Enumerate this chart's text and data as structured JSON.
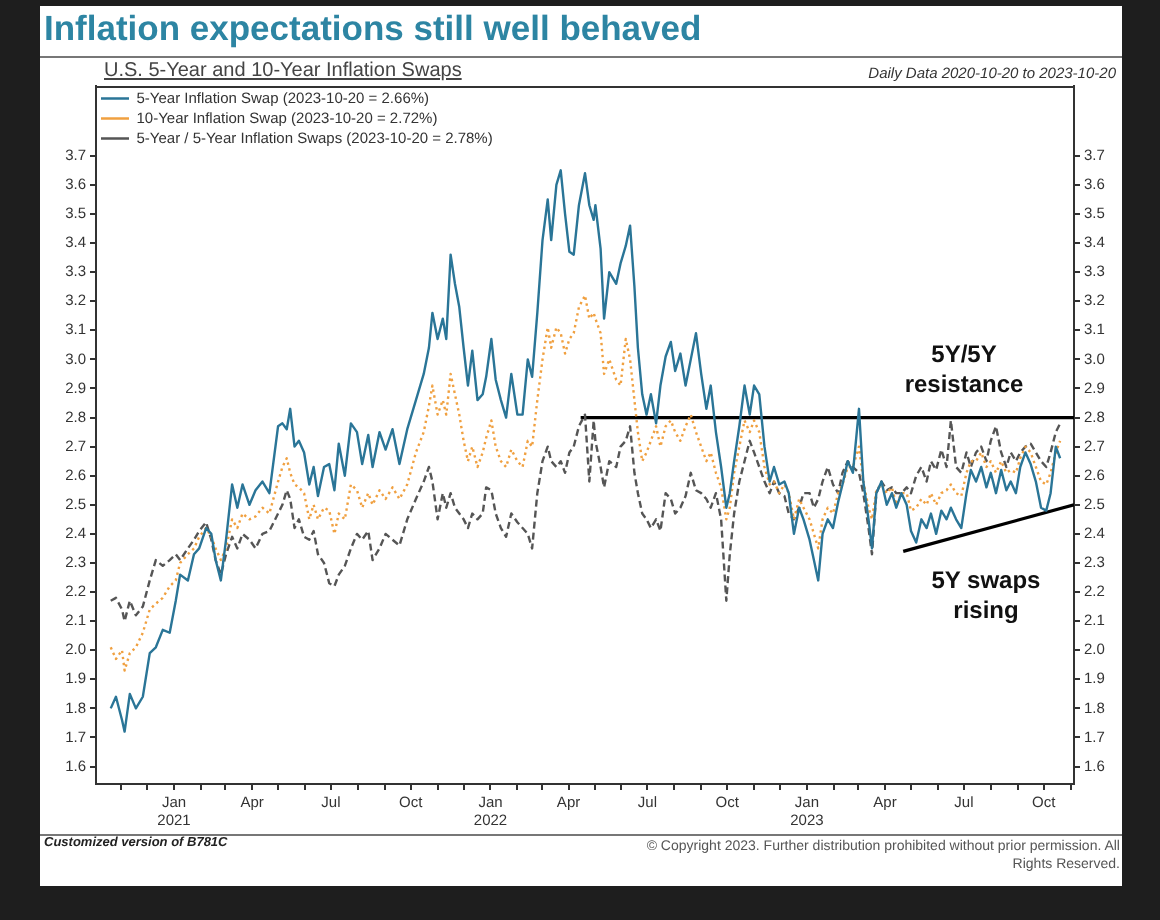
{
  "chart_data": {
    "type": "line",
    "title": "Inflation expectations still well behaved",
    "subtitle": "U.S. 5-Year and 10-Year Inflation Swaps",
    "annotations": [
      "Daily Data 2020-10-20 to 2023-10-20",
      "5Y/5Y resistance",
      "5Y swaps rising",
      "Customized version of B781C",
      "© Copyright 2023. Further distribution prohibited without prior permission. All Rights Reserved."
    ],
    "x": [
      "2020-10-20",
      "2020-10-26",
      "2020-11-02",
      "2020-11-05",
      "2020-11-11",
      "2020-11-18",
      "2020-11-26",
      "2020-12-04",
      "2020-12-11",
      "2020-12-19",
      "2020-12-27",
      "2021-01-03",
      "2021-01-08",
      "2021-01-17",
      "2021-01-24",
      "2021-01-30",
      "2021-02-07",
      "2021-02-13",
      "2021-02-18",
      "2021-02-24",
      "2021-03-02",
      "2021-03-09",
      "2021-03-15",
      "2021-03-21",
      "2021-03-29",
      "2021-04-05",
      "2021-04-13",
      "2021-04-21",
      "2021-05-01",
      "2021-05-06",
      "2021-05-11",
      "2021-05-15",
      "2021-05-20",
      "2021-05-25",
      "2021-05-31",
      "2021-06-06",
      "2021-06-11",
      "2021-06-16",
      "2021-06-23",
      "2021-06-29",
      "2021-07-05",
      "2021-07-10",
      "2021-07-17",
      "2021-07-24",
      "2021-07-31",
      "2021-08-06",
      "2021-08-13",
      "2021-08-18",
      "2021-08-26",
      "2021-09-02",
      "2021-09-10",
      "2021-09-18",
      "2021-09-27",
      "2021-10-07",
      "2021-10-16",
      "2021-10-22",
      "2021-10-26",
      "2021-11-01",
      "2021-11-07",
      "2021-11-11",
      "2021-11-16",
      "2021-11-21",
      "2021-11-26",
      "2021-12-01",
      "2021-12-06",
      "2021-12-11",
      "2021-12-17",
      "2021-12-23",
      "2021-12-27",
      "2022-01-02",
      "2022-01-07",
      "2022-01-13",
      "2022-01-19",
      "2022-01-25",
      "2022-02-01",
      "2022-02-07",
      "2022-02-13",
      "2022-02-18",
      "2022-02-24",
      "2022-03-02",
      "2022-03-08",
      "2022-03-12",
      "2022-03-18",
      "2022-03-23",
      "2022-03-28",
      "2022-04-02",
      "2022-04-07",
      "2022-04-13",
      "2022-04-20",
      "2022-04-25",
      "2022-04-30",
      "2022-05-02",
      "2022-05-08",
      "2022-05-12",
      "2022-05-18",
      "2022-05-26",
      "2022-05-31",
      "2022-06-06",
      "2022-06-11",
      "2022-06-16",
      "2022-06-20",
      "2022-06-25",
      "2022-06-30",
      "2022-07-05",
      "2022-07-11",
      "2022-07-16",
      "2022-07-22",
      "2022-07-28",
      "2022-08-02",
      "2022-08-08",
      "2022-08-14",
      "2022-08-20",
      "2022-08-26",
      "2022-09-01",
      "2022-09-07",
      "2022-09-12",
      "2022-09-18",
      "2022-09-24",
      "2022-09-30",
      "2022-10-04",
      "2022-10-09",
      "2022-10-15",
      "2022-10-21",
      "2022-10-27",
      "2022-11-01",
      "2022-11-07",
      "2022-11-13",
      "2022-11-19",
      "2022-11-24",
      "2022-11-30",
      "2022-12-06",
      "2022-12-11",
      "2022-12-17",
      "2022-12-23",
      "2022-12-28",
      "2023-01-04",
      "2023-01-09",
      "2023-01-14",
      "2023-01-19",
      "2023-01-25",
      "2023-01-31",
      "2023-02-06",
      "2023-02-11",
      "2023-02-17",
      "2023-02-23",
      "2023-03-02",
      "2023-03-07",
      "2023-03-13",
      "2023-03-17",
      "2023-03-22",
      "2023-03-28",
      "2023-04-03",
      "2023-04-09",
      "2023-04-14",
      "2023-04-20",
      "2023-04-26",
      "2023-05-01",
      "2023-05-07",
      "2023-05-13",
      "2023-05-19",
      "2023-05-24",
      "2023-05-30",
      "2023-06-05",
      "2023-06-11",
      "2023-06-16",
      "2023-06-22",
      "2023-06-28",
      "2023-07-04",
      "2023-07-09",
      "2023-07-15",
      "2023-07-21",
      "2023-07-27",
      "2023-08-01",
      "2023-08-07",
      "2023-08-13",
      "2023-08-19",
      "2023-08-24",
      "2023-08-30",
      "2023-09-04",
      "2023-09-10",
      "2023-09-16",
      "2023-09-22",
      "2023-09-28",
      "2023-10-04",
      "2023-10-09",
      "2023-10-15",
      "2023-10-20"
    ],
    "series": [
      {
        "name": "5-Year Inflation Swap (2023-10-20 = 2.66%)",
        "color": "#2a7597",
        "line_style": "solid",
        "values": [
          1.8,
          1.84,
          1.76,
          1.72,
          1.85,
          1.8,
          1.84,
          1.99,
          2.01,
          2.07,
          2.06,
          2.17,
          2.26,
          2.24,
          2.33,
          2.35,
          2.42,
          2.4,
          2.31,
          2.24,
          2.38,
          2.57,
          2.49,
          2.57,
          2.5,
          2.55,
          2.58,
          2.54,
          2.77,
          2.78,
          2.76,
          2.83,
          2.7,
          2.72,
          2.68,
          2.57,
          2.63,
          2.53,
          2.63,
          2.64,
          2.55,
          2.71,
          2.6,
          2.78,
          2.75,
          2.64,
          2.74,
          2.63,
          2.75,
          2.69,
          2.76,
          2.64,
          2.76,
          2.86,
          2.95,
          3.04,
          3.16,
          3.07,
          3.14,
          3.07,
          3.36,
          3.26,
          3.18,
          3.04,
          2.91,
          3.03,
          2.86,
          2.88,
          2.94,
          3.07,
          2.93,
          2.86,
          2.8,
          2.95,
          2.81,
          2.81,
          3.0,
          2.94,
          3.16,
          3.41,
          3.55,
          3.41,
          3.6,
          3.65,
          3.5,
          3.37,
          3.36,
          3.53,
          3.64,
          3.53,
          3.48,
          3.53,
          3.38,
          3.14,
          3.3,
          3.26,
          3.33,
          3.39,
          3.46,
          3.25,
          3.04,
          2.88,
          2.81,
          2.88,
          2.78,
          2.91,
          3.01,
          3.06,
          2.96,
          3.02,
          2.91,
          3.0,
          3.09,
          2.95,
          2.83,
          2.91,
          2.75,
          2.63,
          2.49,
          2.54,
          2.65,
          2.77,
          2.91,
          2.81,
          2.91,
          2.88,
          2.7,
          2.58,
          2.63,
          2.57,
          2.58,
          2.54,
          2.4,
          2.49,
          2.45,
          2.38,
          2.31,
          2.24,
          2.4,
          2.45,
          2.42,
          2.51,
          2.57,
          2.65,
          2.61,
          2.83,
          2.58,
          2.45,
          2.35,
          2.54,
          2.58,
          2.5,
          2.54,
          2.49,
          2.54,
          2.5,
          2.41,
          2.37,
          2.45,
          2.42,
          2.47,
          2.4,
          2.48,
          2.45,
          2.49,
          2.45,
          2.42,
          2.54,
          2.62,
          2.58,
          2.63,
          2.56,
          2.61,
          2.54,
          2.62,
          2.55,
          2.58,
          2.54,
          2.63,
          2.68,
          2.64,
          2.58,
          2.49,
          2.48,
          2.54,
          2.7,
          2.66
        ]
      },
      {
        "name": "10-Year Inflation Swap (2023-10-20 = 2.72%)",
        "color": "#f0a040",
        "line_style": "dotted",
        "values": [
          2.01,
          1.97,
          2.0,
          1.93,
          1.99,
          2.01,
          2.06,
          2.14,
          2.16,
          2.18,
          2.22,
          2.24,
          2.3,
          2.33,
          2.35,
          2.39,
          2.42,
          2.39,
          2.35,
          2.31,
          2.35,
          2.45,
          2.42,
          2.47,
          2.45,
          2.46,
          2.49,
          2.47,
          2.58,
          2.63,
          2.66,
          2.61,
          2.57,
          2.56,
          2.54,
          2.45,
          2.5,
          2.45,
          2.49,
          2.48,
          2.4,
          2.47,
          2.45,
          2.57,
          2.55,
          2.49,
          2.54,
          2.5,
          2.55,
          2.52,
          2.56,
          2.52,
          2.57,
          2.68,
          2.75,
          2.84,
          2.91,
          2.81,
          2.86,
          2.81,
          2.95,
          2.88,
          2.81,
          2.72,
          2.65,
          2.7,
          2.63,
          2.68,
          2.73,
          2.79,
          2.7,
          2.65,
          2.63,
          2.69,
          2.65,
          2.63,
          2.72,
          2.7,
          2.86,
          3.0,
          3.11,
          3.04,
          3.11,
          3.09,
          3.02,
          3.07,
          3.09,
          3.18,
          3.22,
          3.14,
          3.16,
          3.14,
          3.09,
          2.95,
          3.0,
          2.93,
          2.91,
          3.07,
          3.0,
          2.86,
          2.75,
          2.65,
          2.68,
          2.72,
          2.77,
          2.7,
          2.77,
          2.79,
          2.75,
          2.72,
          2.77,
          2.81,
          2.75,
          2.7,
          2.65,
          2.68,
          2.61,
          2.56,
          2.45,
          2.49,
          2.61,
          2.7,
          2.79,
          2.75,
          2.79,
          2.75,
          2.63,
          2.57,
          2.58,
          2.54,
          2.57,
          2.54,
          2.45,
          2.52,
          2.49,
          2.45,
          2.4,
          2.35,
          2.45,
          2.49,
          2.47,
          2.54,
          2.57,
          2.63,
          2.63,
          2.7,
          2.58,
          2.49,
          2.45,
          2.55,
          2.57,
          2.54,
          2.56,
          2.5,
          2.54,
          2.54,
          2.48,
          2.49,
          2.52,
          2.5,
          2.54,
          2.5,
          2.54,
          2.55,
          2.57,
          2.54,
          2.53,
          2.61,
          2.65,
          2.65,
          2.68,
          2.63,
          2.65,
          2.61,
          2.65,
          2.61,
          2.62,
          2.61,
          2.66,
          2.7,
          2.68,
          2.63,
          2.58,
          2.57,
          2.61,
          2.68,
          2.72
        ]
      },
      {
        "name": "5-Year / 5-Year Inflation Swaps (2023-10-20 = 2.78%)",
        "color": "#555555",
        "line_style": "dashed",
        "values": [
          2.17,
          2.18,
          2.14,
          2.1,
          2.17,
          2.12,
          2.15,
          2.24,
          2.31,
          2.29,
          2.31,
          2.33,
          2.31,
          2.35,
          2.38,
          2.41,
          2.44,
          2.38,
          2.31,
          2.26,
          2.33,
          2.39,
          2.35,
          2.4,
          2.38,
          2.35,
          2.4,
          2.41,
          2.47,
          2.5,
          2.55,
          2.52,
          2.42,
          2.45,
          2.39,
          2.38,
          2.41,
          2.33,
          2.3,
          2.23,
          2.22,
          2.26,
          2.29,
          2.35,
          2.4,
          2.38,
          2.41,
          2.31,
          2.35,
          2.4,
          2.38,
          2.36,
          2.45,
          2.52,
          2.58,
          2.63,
          2.58,
          2.45,
          2.54,
          2.49,
          2.54,
          2.49,
          2.47,
          2.45,
          2.42,
          2.47,
          2.45,
          2.47,
          2.56,
          2.55,
          2.47,
          2.42,
          2.39,
          2.47,
          2.44,
          2.42,
          2.4,
          2.35,
          2.54,
          2.65,
          2.7,
          2.65,
          2.63,
          2.65,
          2.61,
          2.68,
          2.7,
          2.77,
          2.81,
          2.58,
          2.79,
          2.72,
          2.63,
          2.56,
          2.65,
          2.63,
          2.7,
          2.72,
          2.77,
          2.61,
          2.54,
          2.47,
          2.45,
          2.42,
          2.45,
          2.41,
          2.54,
          2.52,
          2.47,
          2.49,
          2.53,
          2.61,
          2.55,
          2.54,
          2.52,
          2.49,
          2.54,
          2.45,
          2.17,
          2.33,
          2.47,
          2.58,
          2.65,
          2.72,
          2.68,
          2.63,
          2.58,
          2.54,
          2.58,
          2.54,
          2.53,
          2.47,
          2.45,
          2.49,
          2.54,
          2.54,
          2.49,
          2.52,
          2.58,
          2.63,
          2.57,
          2.54,
          2.61,
          2.65,
          2.63,
          2.61,
          2.54,
          2.42,
          2.33,
          2.54,
          2.58,
          2.55,
          2.56,
          2.54,
          2.54,
          2.56,
          2.54,
          2.6,
          2.63,
          2.58,
          2.65,
          2.62,
          2.69,
          2.63,
          2.79,
          2.63,
          2.61,
          2.68,
          2.63,
          2.68,
          2.7,
          2.65,
          2.72,
          2.77,
          2.68,
          2.63,
          2.68,
          2.65,
          2.68,
          2.7,
          2.71,
          2.68,
          2.65,
          2.63,
          2.68,
          2.75,
          2.78
        ]
      },
      {
        "type": "line",
        "color": "#000000",
        "line_style": "solid",
        "x": [
          "2022-04-15",
          "2023-11-05"
        ],
        "values": [
          2.8,
          2.8
        ]
      },
      {
        "type": "line",
        "color": "#000000",
        "line_style": "solid",
        "x": [
          "2023-04-22",
          "2023-11-05"
        ],
        "values": [
          2.34,
          2.5
        ]
      }
    ],
    "xlim": [
      "2020-10-03",
      "2023-11-05"
    ],
    "xticks": [
      {
        "value": "2020-11-01",
        "label": null
      },
      {
        "value": "2020-12-01",
        "label": null
      },
      {
        "value": "2021-01-01",
        "label": "Jan\n2021"
      },
      {
        "value": "2021-02-01",
        "label": null
      },
      {
        "value": "2021-03-01",
        "label": null
      },
      {
        "value": "2021-04-01",
        "label": "Apr"
      },
      {
        "value": "2021-05-01",
        "label": null
      },
      {
        "value": "2021-06-01",
        "label": null
      },
      {
        "value": "2021-07-01",
        "label": "Jul"
      },
      {
        "value": "2021-08-01",
        "label": null
      },
      {
        "value": "2021-09-01",
        "label": null
      },
      {
        "value": "2021-10-01",
        "label": "Oct"
      },
      {
        "value": "2021-11-01",
        "label": null
      },
      {
        "value": "2021-12-01",
        "label": null
      },
      {
        "value": "2022-01-01",
        "label": "Jan\n2022"
      },
      {
        "value": "2022-02-01",
        "label": null
      },
      {
        "value": "2022-03-01",
        "label": null
      },
      {
        "value": "2022-04-01",
        "label": "Apr"
      },
      {
        "value": "2022-05-01",
        "label": null
      },
      {
        "value": "2022-06-01",
        "label": null
      },
      {
        "value": "2022-07-01",
        "label": "Jul"
      },
      {
        "value": "2022-08-01",
        "label": null
      },
      {
        "value": "2022-09-01",
        "label": null
      },
      {
        "value": "2022-10-01",
        "label": "Oct"
      },
      {
        "value": "2022-11-01",
        "label": null
      },
      {
        "value": "2022-12-01",
        "label": null
      },
      {
        "value": "2023-01-01",
        "label": "Jan\n2023"
      },
      {
        "value": "2023-02-01",
        "label": null
      },
      {
        "value": "2023-03-01",
        "label": null
      },
      {
        "value": "2023-04-01",
        "label": "Apr"
      },
      {
        "value": "2023-05-01",
        "label": null
      },
      {
        "value": "2023-06-01",
        "label": null
      },
      {
        "value": "2023-07-01",
        "label": "Jul"
      },
      {
        "value": "2023-08-01",
        "label": null
      },
      {
        "value": "2023-09-01",
        "label": null
      },
      {
        "value": "2023-10-01",
        "label": "Oct"
      },
      {
        "value": "2023-11-01",
        "label": null
      }
    ],
    "ylim": [
      1.54,
      3.94
    ],
    "yticks": [
      1.6,
      1.7,
      1.8,
      1.9,
      {
        "value": 2,
        "label": "2.0"
      },
      2.1,
      2.2,
      2.3,
      2.4,
      2.5,
      2.6,
      2.7,
      2.8,
      2.9,
      {
        "value": 3,
        "label": "3.0"
      },
      3.1,
      3.2,
      3.3,
      3.4,
      3.5,
      3.6,
      3.7
    ],
    "y2lim": [
      1.54,
      3.94
    ],
    "y2ticks": [
      1.6,
      1.7,
      1.8,
      1.9,
      {
        "value": 2,
        "label": "2.0"
      },
      2.1,
      2.2,
      2.3,
      2.4,
      2.5,
      2.6,
      2.7,
      2.8,
      2.9,
      {
        "value": 3,
        "label": "3.0"
      },
      3.1,
      3.2,
      3.3,
      3.4,
      3.5,
      3.6,
      3.7
    ],
    "grid": false,
    "legend": "top left",
    "marker": "none"
  }
}
